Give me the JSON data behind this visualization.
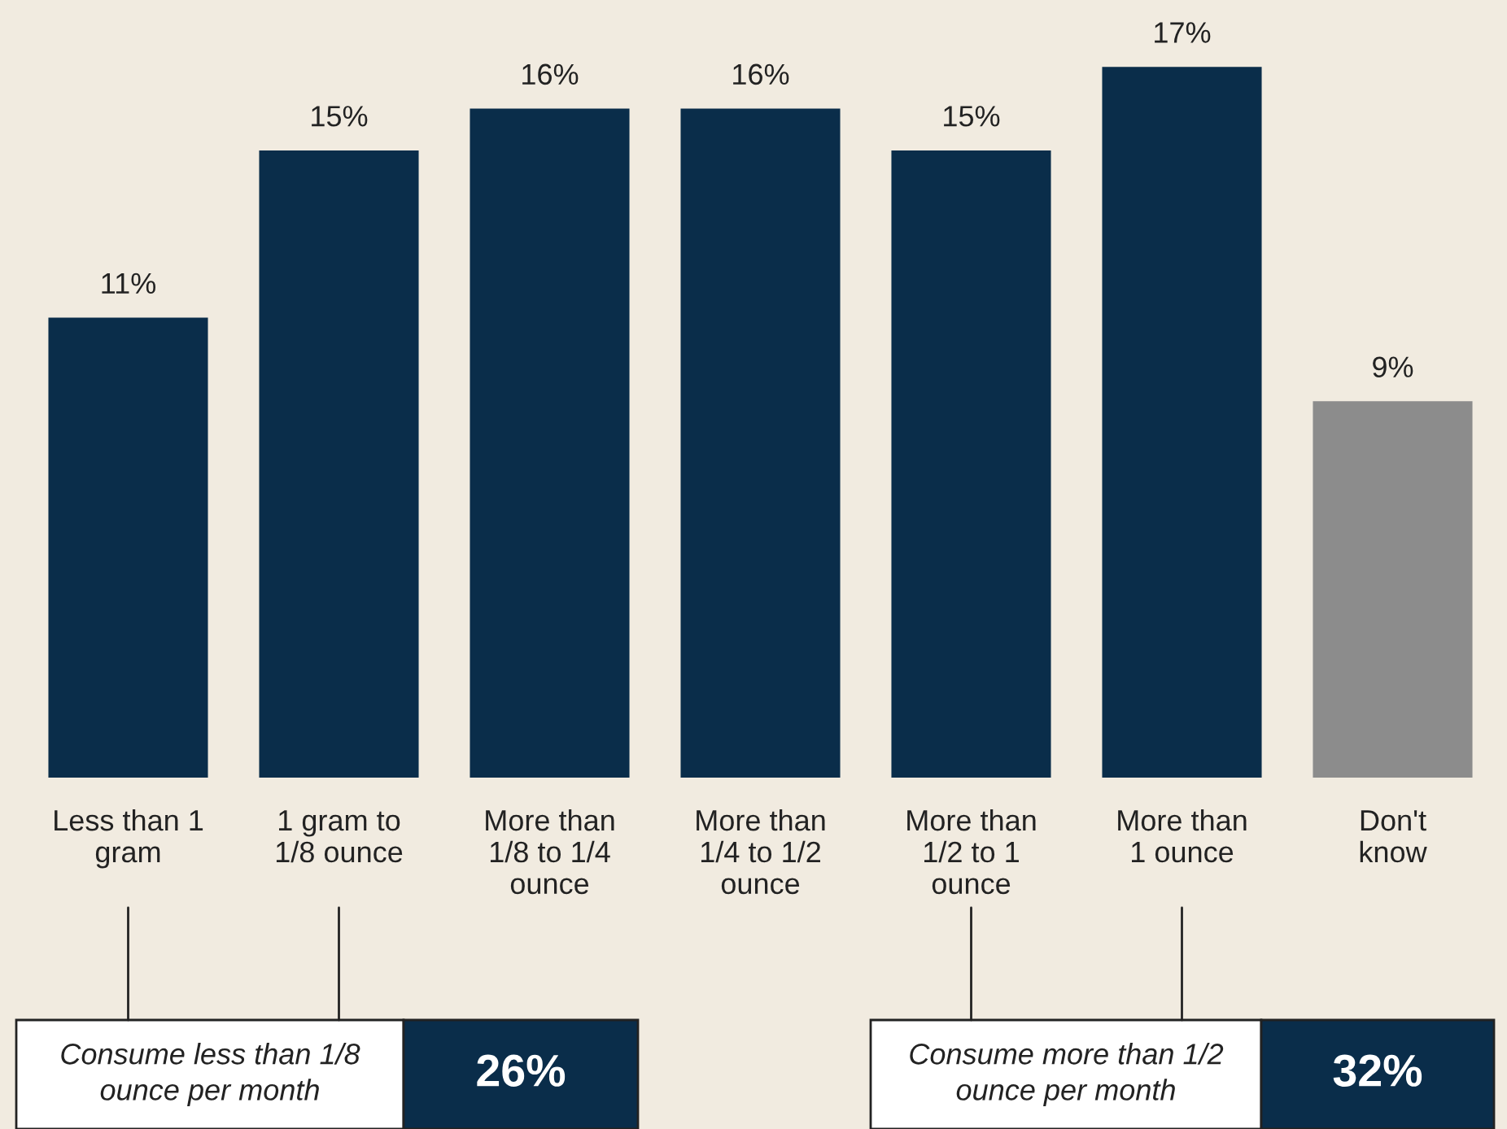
{
  "chart_data": {
    "type": "bar",
    "categories": [
      "Less than 1\ngram",
      "1 gram to\n1/8 ounce",
      "More than\n1/8 to 1/4\nounce",
      "More than\n1/4 to 1/2\nounce",
      "More than\n1/2 to 1\nounce",
      "More than\n1 ounce",
      "Don't\nknow"
    ],
    "values": [
      11,
      15,
      16,
      16,
      15,
      17,
      9
    ],
    "colors": [
      "#0a2d4a",
      "#0a2d4a",
      "#0a2d4a",
      "#0a2d4a",
      "#0a2d4a",
      "#0a2d4a",
      "#8c8c8c"
    ],
    "value_labels": [
      "11%",
      "15%",
      "16%",
      "16%",
      "15%",
      "17%",
      "9%"
    ],
    "annotations": [
      "Consume less than 1/8\nounce per month",
      "26%",
      "Consume more than 1/2\nounce per month",
      "32%"
    ]
  }
}
